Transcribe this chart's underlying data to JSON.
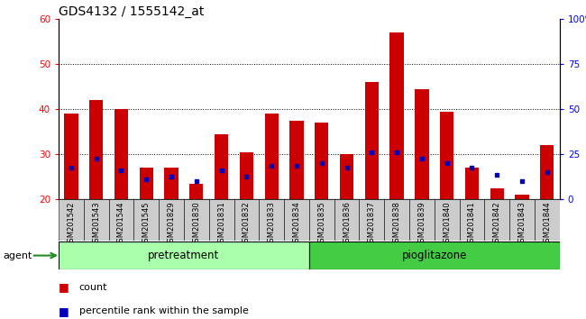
{
  "title": "GDS4132 / 1555142_at",
  "samples": [
    "GSM201542",
    "GSM201543",
    "GSM201544",
    "GSM201545",
    "GSM201829",
    "GSM201830",
    "GSM201831",
    "GSM201832",
    "GSM201833",
    "GSM201834",
    "GSM201835",
    "GSM201836",
    "GSM201837",
    "GSM201838",
    "GSM201839",
    "GSM201840",
    "GSM201841",
    "GSM201842",
    "GSM201843",
    "GSM201844"
  ],
  "count_values": [
    39,
    42,
    40,
    27,
    27,
    23.5,
    34.5,
    30.5,
    39,
    37.5,
    37,
    30,
    46,
    57,
    44.5,
    39.5,
    27,
    22.5,
    21,
    32
  ],
  "percentile_values": [
    27,
    29,
    26.5,
    24.5,
    25,
    24,
    26.5,
    25,
    27.5,
    27.5,
    28,
    27,
    30.5,
    30.5,
    29,
    28,
    27,
    25.5,
    24,
    26
  ],
  "pretreatment_count": 10,
  "pioglitazone_count": 10,
  "ylim_left": [
    20,
    60
  ],
  "ylim_right": [
    0,
    100
  ],
  "yticks_left": [
    20,
    30,
    40,
    50,
    60
  ],
  "yticks_right": [
    0,
    25,
    50,
    75,
    100
  ],
  "bar_color": "#cc0000",
  "blue_color": "#0000bb",
  "pretreatment_color": "#aaffaa",
  "pioglitazone_color": "#44cc44",
  "xtick_bg_color": "#cccccc",
  "title_fontsize": 10,
  "tick_fontsize": 7.5,
  "sample_fontsize": 6,
  "agent_fontsize": 8.5,
  "legend_fontsize": 8
}
